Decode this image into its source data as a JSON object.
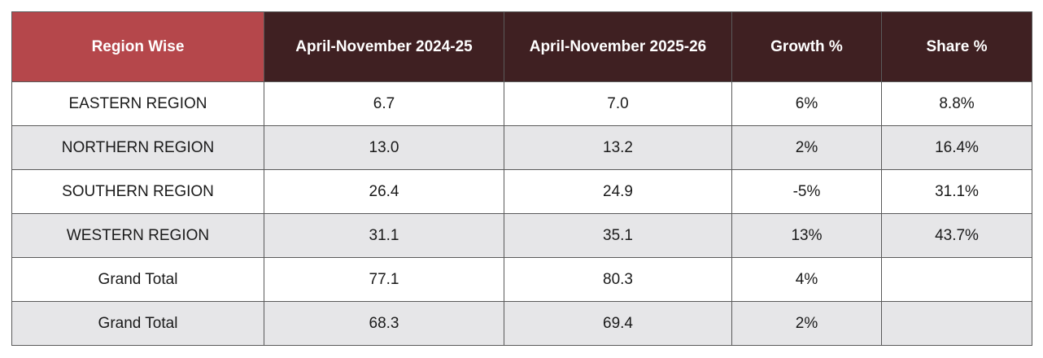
{
  "table": {
    "columns": [
      "Region Wise",
      "April-November 2024-25",
      "April-November 2025-26",
      "Growth %",
      "Share %"
    ],
    "rows": [
      [
        "EASTERN REGION",
        "6.7",
        "7.0",
        "6%",
        "8.8%"
      ],
      [
        "NORTHERN REGION",
        "13.0",
        "13.2",
        "2%",
        "16.4%"
      ],
      [
        "SOUTHERN REGION",
        "26.4",
        "24.9",
        "-5%",
        "31.1%"
      ],
      [
        "WESTERN REGION",
        "31.1",
        "35.1",
        "13%",
        "43.7%"
      ],
      [
        "Grand Total",
        "77.1",
        "80.3",
        "4%",
        null
      ],
      [
        "Grand Total",
        "68.3",
        "69.4",
        "2%",
        null
      ]
    ]
  }
}
